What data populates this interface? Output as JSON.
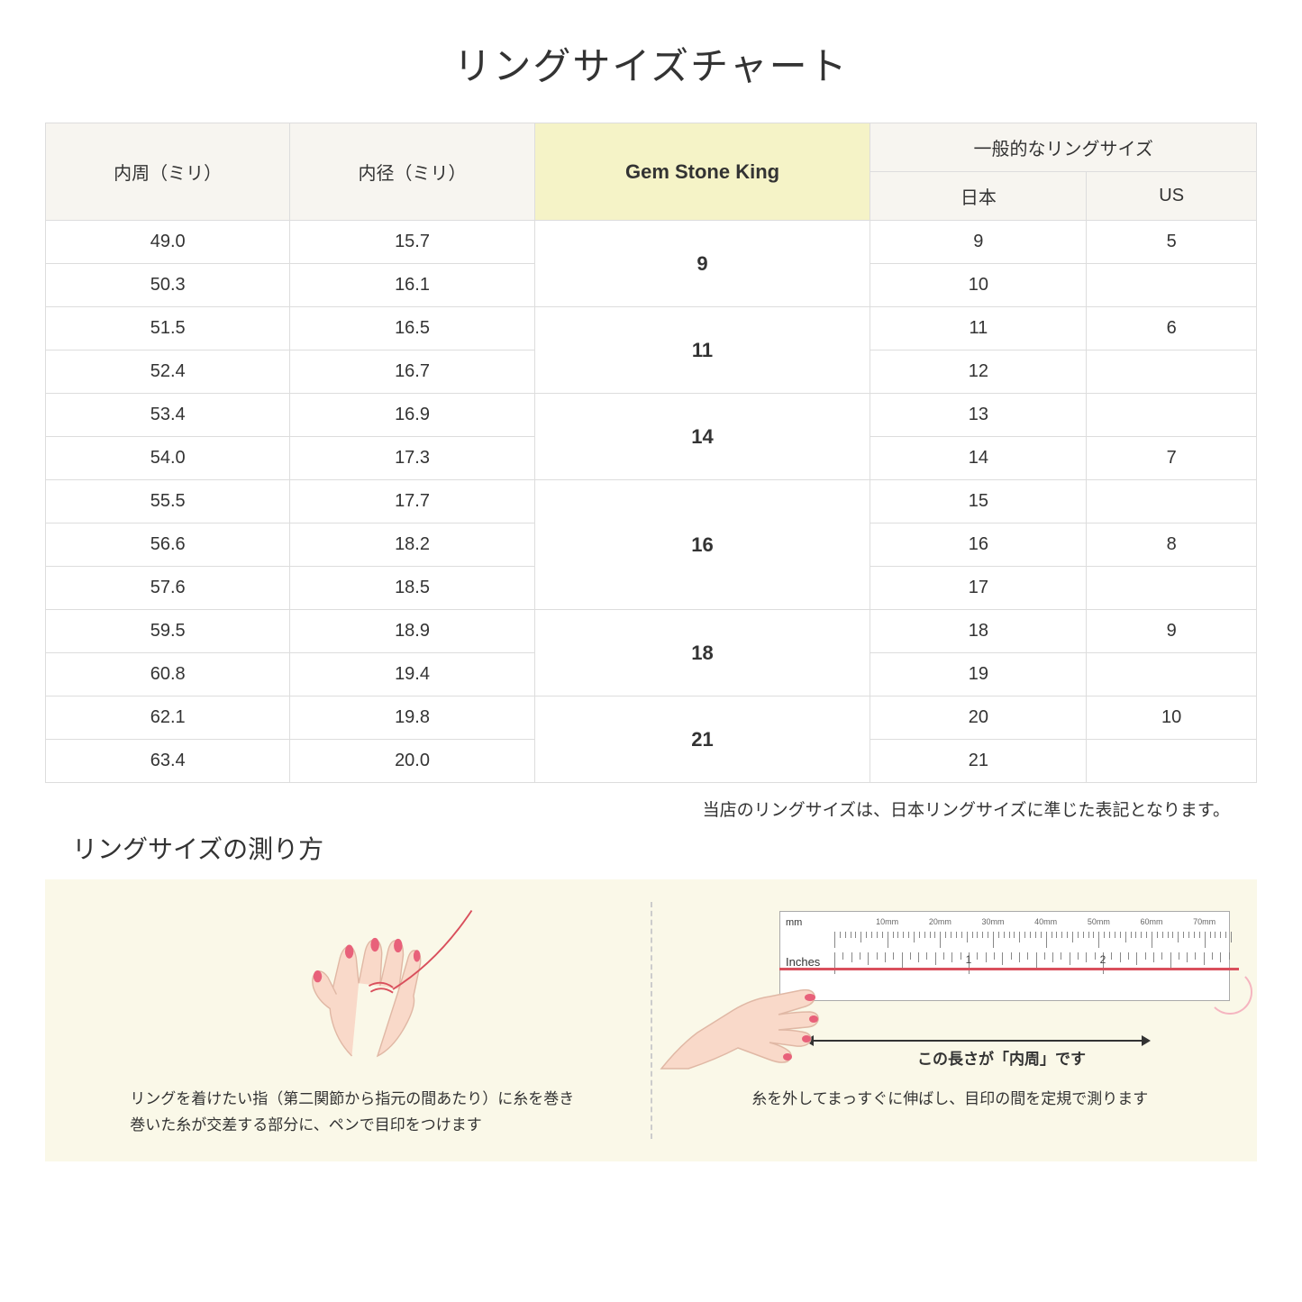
{
  "title": "リングサイズチャート",
  "headers": {
    "circumference": "内周（ミリ）",
    "diameter": "内径（ミリ）",
    "gemstone": "Gem Stone King",
    "general": "一般的なリングサイズ",
    "japan": "日本",
    "us": "US"
  },
  "rows": [
    {
      "circ": "49.0",
      "diam": "15.7",
      "gsk": "9",
      "gsk_span": 2,
      "jp": "9",
      "us": "5"
    },
    {
      "circ": "50.3",
      "diam": "16.1",
      "jp": "10",
      "us": ""
    },
    {
      "circ": "51.5",
      "diam": "16.5",
      "gsk": "11",
      "gsk_span": 2,
      "jp": "11",
      "us": "6"
    },
    {
      "circ": "52.4",
      "diam": "16.7",
      "jp": "12",
      "us": ""
    },
    {
      "circ": "53.4",
      "diam": "16.9",
      "gsk": "14",
      "gsk_span": 2,
      "jp": "13",
      "us": ""
    },
    {
      "circ": "54.0",
      "diam": "17.3",
      "jp": "14",
      "us": "7"
    },
    {
      "circ": "55.5",
      "diam": "17.7",
      "gsk": "16",
      "gsk_span": 3,
      "jp": "15",
      "us": ""
    },
    {
      "circ": "56.6",
      "diam": "18.2",
      "jp": "16",
      "us": "8"
    },
    {
      "circ": "57.6",
      "diam": "18.5",
      "jp": "17",
      "us": ""
    },
    {
      "circ": "59.5",
      "diam": "18.9",
      "gsk": "18",
      "gsk_span": 2,
      "jp": "18",
      "us": "9"
    },
    {
      "circ": "60.8",
      "diam": "19.4",
      "jp": "19",
      "us": ""
    },
    {
      "circ": "62.1",
      "diam": "19.8",
      "gsk": "21",
      "gsk_span": 2,
      "jp": "20",
      "us": "10"
    },
    {
      "circ": "63.4",
      "diam": "20.0",
      "jp": "21",
      "us": ""
    }
  ],
  "note": "当店のリングサイズは、日本リングサイズに準じた表記となります。",
  "subtitle": "リングサイズの測り方",
  "instruction_left": "リングを着けたい指（第二関節から指元の間あたり）に糸を巻き\n巻いた糸が交差する部分に、ペンで目印をつけます",
  "instruction_right": "糸を外してまっすぐに伸ばし、目印の間を定規で測ります",
  "measure_label": "この長さが「内周」です",
  "ruler_mm": "mm",
  "ruler_in": "Inches",
  "mm_labels": [
    "10mm",
    "20mm",
    "30mm",
    "40mm",
    "50mm",
    "60mm",
    "70mm"
  ],
  "in_labels": [
    "1",
    "2"
  ],
  "colors": {
    "header_bg": "#f7f5f0",
    "highlight_bg": "#f5f3c7",
    "panel_bg": "#faf8e8",
    "border": "#dddddd",
    "thread": "#d94f5c",
    "skin": "#f9d9c9",
    "nail": "#e8617a"
  }
}
